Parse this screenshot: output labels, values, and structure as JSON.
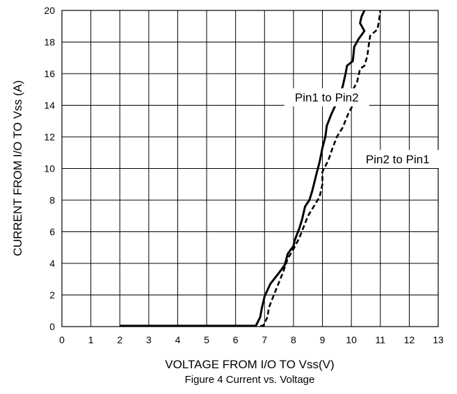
{
  "chart_data": {
    "type": "line",
    "title": "",
    "caption": "Figure 4 Current  vs. Voltage",
    "xlabel": "VOLTAGE FROM I/O TO Vss(V)",
    "ylabel": "CURRENT FROM  I/O TO Vss (A)",
    "xlim": [
      0,
      13
    ],
    "ylim": [
      0,
      20
    ],
    "x_ticks": [
      "0",
      "1",
      "2",
      "3",
      "4",
      "5",
      "6",
      "7",
      "8",
      "9",
      "10",
      "11",
      "12",
      "13"
    ],
    "y_ticks": [
      "0",
      "2",
      "4",
      "6",
      "8",
      "10",
      "12",
      "14",
      "16",
      "18",
      "20"
    ],
    "grid": true,
    "series": [
      {
        "name": "Pin1 to Pin2",
        "style": "solid",
        "color": "#000000",
        "points": [
          [
            2.0,
            0.05
          ],
          [
            6.7,
            0.05
          ],
          [
            6.85,
            0.6
          ],
          [
            6.9,
            1.1
          ],
          [
            7.0,
            1.9
          ],
          [
            7.2,
            2.7
          ],
          [
            7.5,
            3.4
          ],
          [
            7.7,
            3.9
          ],
          [
            7.8,
            4.6
          ],
          [
            8.0,
            5.1
          ],
          [
            8.05,
            5.5
          ],
          [
            8.2,
            6.2
          ],
          [
            8.3,
            6.8
          ],
          [
            8.4,
            7.6
          ],
          [
            8.55,
            8.0
          ],
          [
            8.65,
            8.6
          ],
          [
            8.8,
            9.7
          ],
          [
            8.9,
            10.4
          ],
          [
            9.0,
            11.3
          ],
          [
            9.1,
            12.0
          ],
          [
            9.15,
            12.7
          ],
          [
            9.3,
            13.4
          ],
          [
            9.4,
            13.8
          ],
          [
            9.6,
            14.6
          ],
          [
            9.7,
            15.2
          ],
          [
            9.8,
            16.0
          ],
          [
            9.85,
            16.5
          ],
          [
            10.05,
            16.8
          ],
          [
            10.1,
            17.7
          ],
          [
            10.25,
            18.2
          ],
          [
            10.45,
            18.7
          ],
          [
            10.3,
            19.2
          ],
          [
            10.35,
            19.6
          ],
          [
            10.45,
            20.0
          ]
        ]
      },
      {
        "name": "Pin2 to Pin1",
        "style": "dashed",
        "color": "#000000",
        "points": [
          [
            6.85,
            0.05
          ],
          [
            6.95,
            0.05
          ],
          [
            7.1,
            0.6
          ],
          [
            7.15,
            1.2
          ],
          [
            7.3,
            1.9
          ],
          [
            7.5,
            2.8
          ],
          [
            7.65,
            3.5
          ],
          [
            7.8,
            4.3
          ],
          [
            8.0,
            4.9
          ],
          [
            8.2,
            5.6
          ],
          [
            8.35,
            6.3
          ],
          [
            8.5,
            7.0
          ],
          [
            8.7,
            7.6
          ],
          [
            8.9,
            8.2
          ],
          [
            9.0,
            9.0
          ],
          [
            9.0,
            9.8
          ],
          [
            9.2,
            10.5
          ],
          [
            9.35,
            11.3
          ],
          [
            9.5,
            12.0
          ],
          [
            9.7,
            12.6
          ],
          [
            9.9,
            13.5
          ],
          [
            10.05,
            14.0
          ],
          [
            10.0,
            14.8
          ],
          [
            10.2,
            15.5
          ],
          [
            10.3,
            16.3
          ],
          [
            10.45,
            16.5
          ],
          [
            10.55,
            17.1
          ],
          [
            10.6,
            17.8
          ],
          [
            10.65,
            18.4
          ],
          [
            10.9,
            18.8
          ],
          [
            10.95,
            19.3
          ],
          [
            11.0,
            20.0
          ]
        ]
      }
    ],
    "annotations": [
      {
        "text": "Pin1 to Pin2",
        "x": 9.15,
        "y": 14.5
      },
      {
        "text": "Pin2 to Pin1",
        "x": 11.6,
        "y": 10.6
      }
    ]
  }
}
